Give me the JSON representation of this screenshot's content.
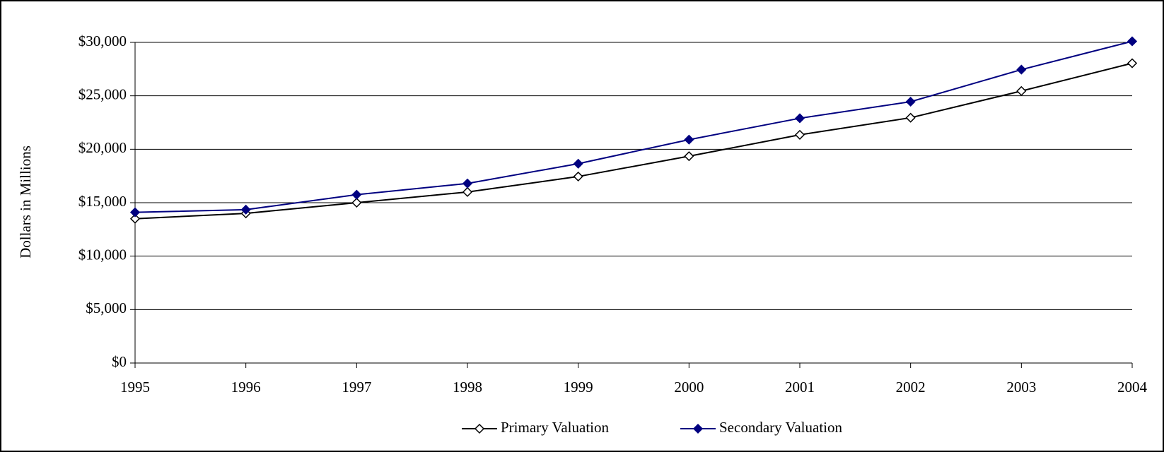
{
  "chart_data": {
    "type": "line",
    "y_label": "Dollars in Millions",
    "x": [
      1995,
      1996,
      1997,
      1998,
      1999,
      2000,
      2001,
      2002,
      2003,
      2004
    ],
    "xlim": [
      1995,
      2004
    ],
    "xticks": [
      1995,
      1996,
      1997,
      1998,
      1999,
      2000,
      2001,
      2002,
      2003,
      2004
    ],
    "ylim": [
      0,
      30000
    ],
    "yticks": [
      {
        "value": 0,
        "label": "$0"
      },
      {
        "value": 5000,
        "label": "$5,000"
      },
      {
        "value": 10000,
        "label": "$10,000"
      },
      {
        "value": 15000,
        "label": "$15,000"
      },
      {
        "value": 20000,
        "label": "$20,000"
      },
      {
        "value": 25000,
        "label": "$25,000"
      },
      {
        "value": 30000,
        "label": "$30,000"
      }
    ],
    "grid": true,
    "legend": "bottom",
    "series": [
      {
        "name": "Primary Valuation",
        "color": "#000000",
        "marker_fill": "#ffffff",
        "values": [
          13500,
          14000,
          15000,
          16000,
          17450,
          19350,
          21350,
          22950,
          25450,
          28050
        ]
      },
      {
        "name": "Secondary Valuation",
        "color": "#000080",
        "marker_fill": "#000080",
        "values": [
          14100,
          14350,
          15750,
          16800,
          18650,
          20900,
          22900,
          24450,
          27450,
          30100
        ]
      }
    ]
  }
}
